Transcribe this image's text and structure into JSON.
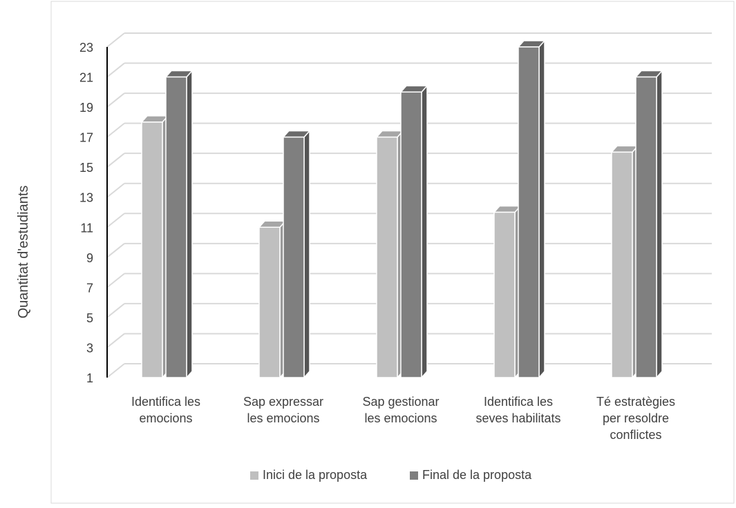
{
  "chart_data": {
    "type": "bar",
    "title": "",
    "xlabel": "",
    "ylabel": "Quantitat d'estudiants",
    "ylim": [
      1,
      23
    ],
    "yticks": [
      1,
      3,
      5,
      7,
      9,
      11,
      13,
      15,
      17,
      19,
      21,
      23
    ],
    "grid": true,
    "legend": "bottom",
    "categories": [
      [
        "Identifica les",
        "emocions"
      ],
      [
        "Sap expressar",
        "les emocions"
      ],
      [
        "Sap gestionar",
        "les emocions"
      ],
      [
        "Identifica les",
        "seves habilitats"
      ],
      [
        "Té estratègies",
        "per resoldre",
        "conflictes"
      ]
    ],
    "series": [
      {
        "name": "Inici de la proposta",
        "values": [
          18,
          11,
          17,
          12,
          16
        ]
      },
      {
        "name": "Final de la proposta",
        "values": [
          21,
          17,
          20,
          23,
          21
        ]
      }
    ],
    "colors": {
      "series0_front": "#bfbfbf",
      "series0_top": "#a6a6a6",
      "series0_side": "#999999",
      "series1_front": "#7f7f7f",
      "series1_top": "#6b6b6b",
      "series1_side": "#555555",
      "grid": "#d9d9d9",
      "text": "#404040",
      "frame": "#d9d9d9"
    }
  }
}
